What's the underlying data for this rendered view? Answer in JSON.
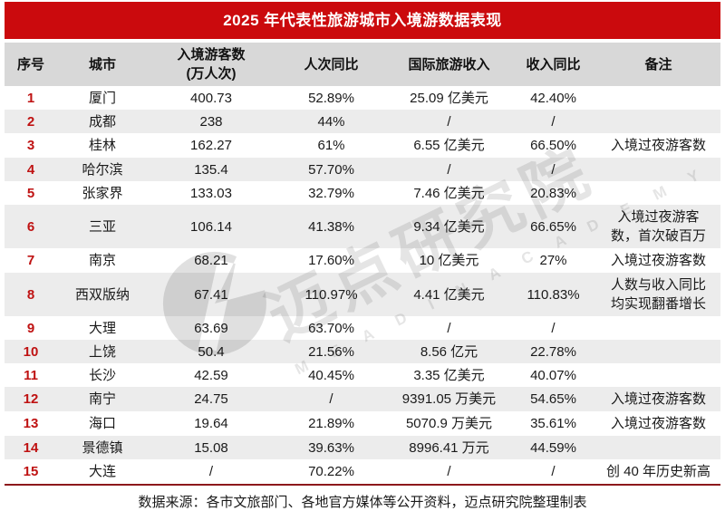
{
  "title": "2025 年代表性旅游城市入境游数据表现",
  "columns": [
    {
      "key": "index",
      "label": "序号"
    },
    {
      "key": "city",
      "label": "城市"
    },
    {
      "key": "visitors",
      "label": "入境游客数",
      "label2": "(万人次)"
    },
    {
      "key": "visitors_yoy",
      "label": "人次同比"
    },
    {
      "key": "revenue",
      "label": "国际旅游收入"
    },
    {
      "key": "revenue_yoy",
      "label": "收入同比"
    },
    {
      "key": "remark",
      "label": "备注"
    }
  ],
  "rows": [
    {
      "index": "1",
      "city": "厦门",
      "visitors": "400.73",
      "visitors_yoy": "52.89%",
      "revenue": "25.09 亿美元",
      "revenue_yoy": "42.40%",
      "remark": ""
    },
    {
      "index": "2",
      "city": "成都",
      "visitors": "238",
      "visitors_yoy": "44%",
      "revenue": "/",
      "revenue_yoy": "/",
      "remark": ""
    },
    {
      "index": "3",
      "city": "桂林",
      "visitors": "162.27",
      "visitors_yoy": "61%",
      "revenue": "6.55 亿美元",
      "revenue_yoy": "66.50%",
      "remark": "入境过夜游客数"
    },
    {
      "index": "4",
      "city": "哈尔滨",
      "visitors": "135.4",
      "visitors_yoy": "57.70%",
      "revenue": "/",
      "revenue_yoy": "/",
      "remark": ""
    },
    {
      "index": "5",
      "city": "张家界",
      "visitors": "133.03",
      "visitors_yoy": "32.79%",
      "revenue": "7.46 亿美元",
      "revenue_yoy": "20.83%",
      "remark": ""
    },
    {
      "index": "6",
      "city": "三亚",
      "visitors": "106.14",
      "visitors_yoy": "41.38%",
      "revenue": "9.34 亿美元",
      "revenue_yoy": "66.65%",
      "remark": "入境过夜游客数，首次破百万"
    },
    {
      "index": "7",
      "city": "南京",
      "visitors": "68.21",
      "visitors_yoy": "17.60%",
      "revenue": "10 亿美元",
      "revenue_yoy": "27%",
      "remark": "入境过夜游客数"
    },
    {
      "index": "8",
      "city": "西双版纳",
      "visitors": "67.41",
      "visitors_yoy": "110.97%",
      "revenue": "4.41 亿美元",
      "revenue_yoy": "110.83%",
      "remark": "人数与收入同比均实现翻番增长"
    },
    {
      "index": "9",
      "city": "大理",
      "visitors": "63.69",
      "visitors_yoy": "63.70%",
      "revenue": "/",
      "revenue_yoy": "/",
      "remark": ""
    },
    {
      "index": "10",
      "city": "上饶",
      "visitors": "50.4",
      "visitors_yoy": "21.56%",
      "revenue": "8.56 亿元",
      "revenue_yoy": "22.78%",
      "remark": ""
    },
    {
      "index": "11",
      "city": "长沙",
      "visitors": "42.59",
      "visitors_yoy": "40.45%",
      "revenue": "3.35 亿美元",
      "revenue_yoy": "40.07%",
      "remark": ""
    },
    {
      "index": "12",
      "city": "南宁",
      "visitors": "24.75",
      "visitors_yoy": "/",
      "revenue": "9391.05 万美元",
      "revenue_yoy": "54.65%",
      "remark": "入境过夜游客数"
    },
    {
      "index": "13",
      "city": "海口",
      "visitors": "19.64",
      "visitors_yoy": "21.89%",
      "revenue": "5070.9 万美元",
      "revenue_yoy": "35.61%",
      "remark": "入境过夜游客数"
    },
    {
      "index": "14",
      "city": "景德镇",
      "visitors": "15.08",
      "visitors_yoy": "39.63%",
      "revenue": "8996.41 万元",
      "revenue_yoy": "44.59%",
      "remark": ""
    },
    {
      "index": "15",
      "city": "大连",
      "visitors": "/",
      "visitors_yoy": "70.22%",
      "revenue": "/",
      "revenue_yoy": "/",
      "remark": "创 40 年历史新高"
    }
  ],
  "footer": {
    "source": "数据来源：各市文旅部门、各地官方媒体等公开资料，迈点研究院整理制表"
  },
  "watermark": {
    "text": "迈点研究院",
    "subtext": "M E A D I N  A C A D E M Y",
    "logo_icon": "meadin-logo"
  },
  "colors": {
    "title_bg": "#cb0a0d",
    "title_text": "#ffffff",
    "header_bg": "#d8d8d8",
    "stripe_bg": "#ececec",
    "index_red": "#bf1212",
    "rule_maroon": "#8c181c",
    "text": "#1a1a1a"
  }
}
